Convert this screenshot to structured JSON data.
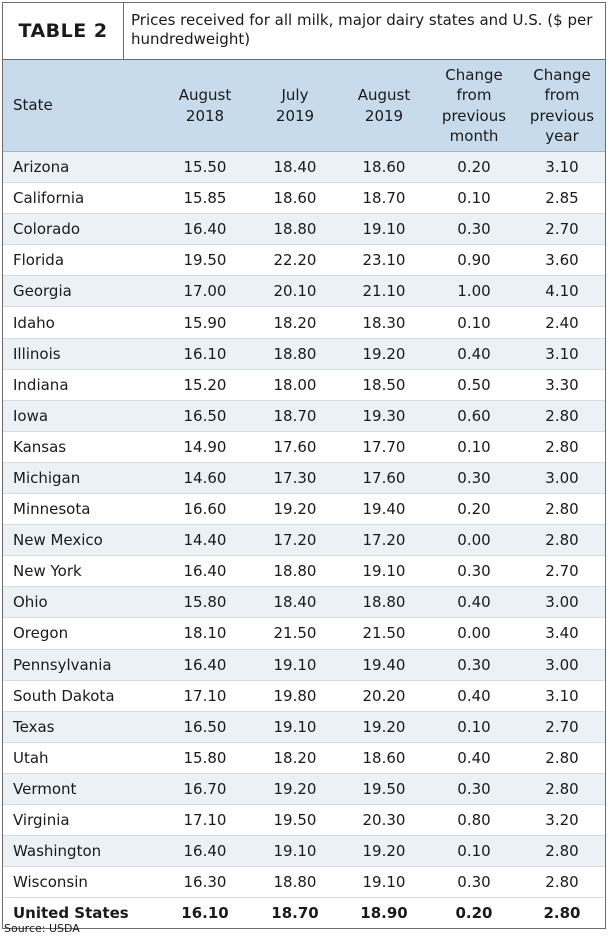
{
  "header": {
    "label": "TABLE 2",
    "title": "Prices received for all milk, major dairy states and U.S. ($ per hundredweight)"
  },
  "table": {
    "columns": [
      "State",
      "August\n2018",
      "July\n2019",
      "August\n2019",
      "Change\nfrom\nprevious\nmonth",
      "Change\nfrom\nprevious\nyear"
    ],
    "rows": [
      [
        "Arizona",
        "15.50",
        "18.40",
        "18.60",
        "0.20",
        "3.10"
      ],
      [
        "California",
        "15.85",
        "18.60",
        "18.70",
        "0.10",
        "2.85"
      ],
      [
        "Colorado",
        "16.40",
        "18.80",
        "19.10",
        "0.30",
        "2.70"
      ],
      [
        "Florida",
        "19.50",
        "22.20",
        "23.10",
        "0.90",
        "3.60"
      ],
      [
        "Georgia",
        "17.00",
        "20.10",
        "21.10",
        "1.00",
        "4.10"
      ],
      [
        "Idaho",
        "15.90",
        "18.20",
        "18.30",
        "0.10",
        "2.40"
      ],
      [
        "Illinois",
        "16.10",
        "18.80",
        "19.20",
        "0.40",
        "3.10"
      ],
      [
        "Indiana",
        "15.20",
        "18.00",
        "18.50",
        "0.50",
        "3.30"
      ],
      [
        "Iowa",
        "16.50",
        "18.70",
        "19.30",
        "0.60",
        "2.80"
      ],
      [
        "Kansas",
        "14.90",
        "17.60",
        "17.70",
        "0.10",
        "2.80"
      ],
      [
        "Michigan",
        "14.60",
        "17.30",
        "17.60",
        "0.30",
        "3.00"
      ],
      [
        "Minnesota",
        "16.60",
        "19.20",
        "19.40",
        "0.20",
        "2.80"
      ],
      [
        "New Mexico",
        "14.40",
        "17.20",
        "17.20",
        "0.00",
        "2.80"
      ],
      [
        "New York",
        "16.40",
        "18.80",
        "19.10",
        "0.30",
        "2.70"
      ],
      [
        "Ohio",
        "15.80",
        "18.40",
        "18.80",
        "0.40",
        "3.00"
      ],
      [
        "Oregon",
        "18.10",
        "21.50",
        "21.50",
        "0.00",
        "3.40"
      ],
      [
        "Pennsylvania",
        "16.40",
        "19.10",
        "19.40",
        "0.30",
        "3.00"
      ],
      [
        "South Dakota",
        "17.10",
        "19.80",
        "20.20",
        "0.40",
        "3.10"
      ],
      [
        "Texas",
        "16.50",
        "19.10",
        "19.20",
        "0.10",
        "2.70"
      ],
      [
        "Utah",
        "15.80",
        "18.20",
        "18.60",
        "0.40",
        "2.80"
      ],
      [
        "Vermont",
        "16.70",
        "19.20",
        "19.50",
        "0.30",
        "2.80"
      ],
      [
        "Virginia",
        "17.10",
        "19.50",
        "20.30",
        "0.80",
        "3.20"
      ],
      [
        "Washington",
        "16.40",
        "19.10",
        "19.20",
        "0.10",
        "2.80"
      ],
      [
        "Wisconsin",
        "16.30",
        "18.80",
        "19.10",
        "0.30",
        "2.80"
      ]
    ],
    "total": [
      "United States",
      "16.10",
      "18.70",
      "18.90",
      "0.20",
      "2.80"
    ]
  },
  "footer": {
    "source": "Source: USDA"
  }
}
